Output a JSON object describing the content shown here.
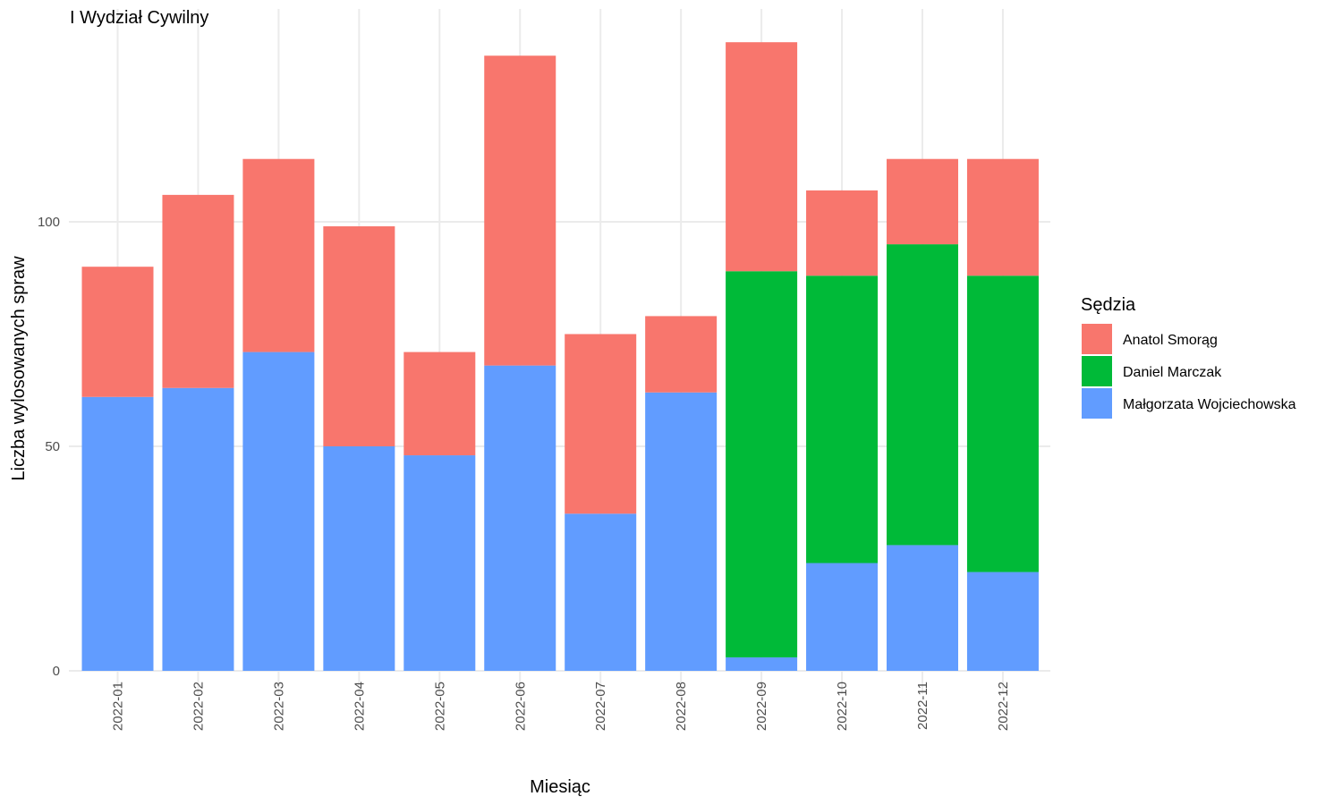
{
  "chart_data": {
    "type": "bar",
    "stacked": true,
    "title": "I Wydział Cywilny",
    "xlabel": "Miesiąc",
    "ylabel": "Liczba wylosowanych spraw",
    "ylim": [
      0,
      147
    ],
    "yticks": [
      0,
      50,
      100
    ],
    "grid": true,
    "legend_title": "Sędzia",
    "legend_position": "right",
    "categories": [
      "2022-01",
      "2022-02",
      "2022-03",
      "2022-04",
      "2022-05",
      "2022-06",
      "2022-07",
      "2022-08",
      "2022-09",
      "2022-10",
      "2022-11",
      "2022-12"
    ],
    "series": [
      {
        "name": "Małgorzata Wojciechowska",
        "color": "#619CFF",
        "values": [
          61,
          63,
          71,
          50,
          48,
          68,
          35,
          62,
          3,
          24,
          28,
          22
        ]
      },
      {
        "name": "Daniel Marczak",
        "color": "#00BA38",
        "values": [
          0,
          0,
          0,
          0,
          0,
          0,
          0,
          0,
          86,
          64,
          67,
          66
        ]
      },
      {
        "name": "Anatol Smorąg",
        "color": "#F8766D",
        "values": [
          29,
          43,
          43,
          49,
          23,
          69,
          40,
          17,
          51,
          19,
          19,
          26
        ]
      }
    ],
    "legend_order": [
      "Anatol Smorąg",
      "Daniel Marczak",
      "Małgorzata Wojciechowska"
    ]
  }
}
